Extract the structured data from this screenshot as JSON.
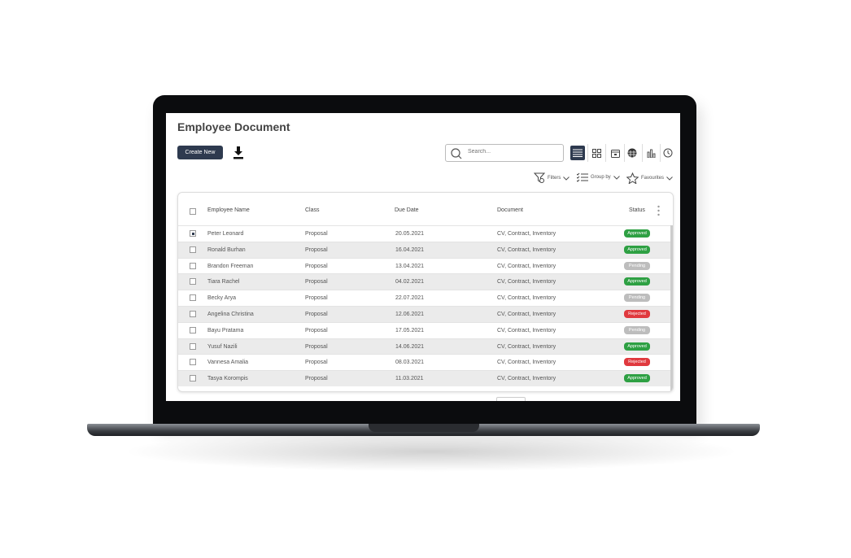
{
  "page": {
    "title": "Employee Document"
  },
  "toolbar": {
    "create_label": "Create New",
    "search_placeholder": "Search...",
    "views": [
      "list-icon",
      "grid-icon",
      "calendar-icon",
      "table-icon",
      "bar-chart-icon",
      "clock-icon"
    ],
    "active_view": "list-icon",
    "filters_label": "Filters",
    "groupby_label": "Group by",
    "favourites_label": "Favourites"
  },
  "table": {
    "headers": [
      "Employee Name",
      "Class",
      "Due Date",
      "Document",
      "Status"
    ],
    "rows": [
      {
        "name": "Peter Leonard",
        "class": "Proposal",
        "date": "20.05.2021",
        "doc": "CV, Contract, Inventory",
        "status": "Approved",
        "checked": true
      },
      {
        "name": "Ronald Burhan",
        "class": "Proposal",
        "date": "16.04.2021",
        "doc": "CV, Contract, Inventory",
        "status": "Approved"
      },
      {
        "name": "Brandon Freeman",
        "class": "Proposal",
        "date": "13.04.2021",
        "doc": "CV, Contract, Inventory",
        "status": "Pending"
      },
      {
        "name": "Tiara Rachel",
        "class": "Proposal",
        "date": "04.02.2021",
        "doc": "CV, Contract, Inventory",
        "status": "Approved"
      },
      {
        "name": "Becky Arya",
        "class": "Proposal",
        "date": "22.07.2021",
        "doc": "CV, Contract, Inventory",
        "status": "Pending"
      },
      {
        "name": "Angelina Christina",
        "class": "Proposal",
        "date": "12.06.2021",
        "doc": "CV, Contract, Inventory",
        "status": "Rejected"
      },
      {
        "name": "Bayu Pratama",
        "class": "Proposal",
        "date": "17.05.2021",
        "doc": "CV, Contract, Inventory",
        "status": "Pending"
      },
      {
        "name": "Yusuf Nazili",
        "class": "Proposal",
        "date": "14.06.2021",
        "doc": "CV, Contract, Inventory",
        "status": "Approved"
      },
      {
        "name": "Vannesa Amalia",
        "class": "Proposal",
        "date": "08.03.2021",
        "doc": "CV, Contract, Inventory",
        "status": "Rejected"
      },
      {
        "name": "Tasya Korompis",
        "class": "Proposal",
        "date": "11.03.2021",
        "doc": "CV, Contract, Inventory",
        "status": "Approved"
      }
    ]
  },
  "colors": {
    "primary": "#2e3a4f",
    "approved": "#2ea043",
    "pending": "#bdbdbd",
    "rejected": "#e0393e"
  }
}
